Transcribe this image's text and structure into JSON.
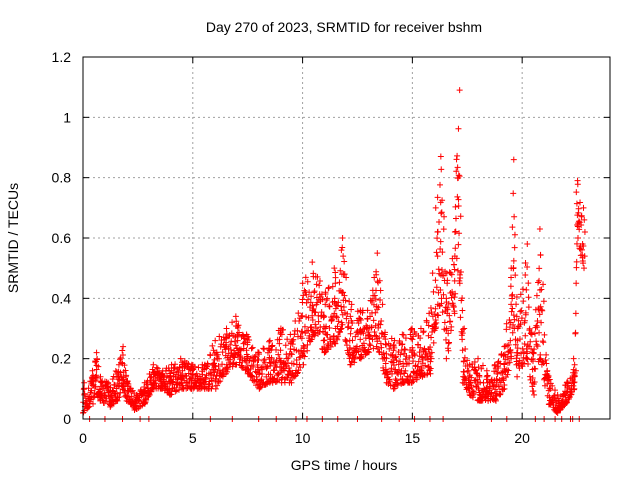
{
  "chart_data": {
    "type": "scatter",
    "title": "Day 270 of 2023, SRMTID for receiver bshm",
    "xlabel": "GPS time / hours",
    "ylabel": "SRMTID / TECUs",
    "xlim": [
      0,
      24
    ],
    "ylim": [
      0,
      1.2
    ],
    "xticks": [
      0,
      5,
      10,
      15,
      20
    ],
    "yticks": [
      0,
      0.2,
      0.4,
      0.6,
      0.8,
      1,
      1.2
    ],
    "xtick_labels": [
      "0",
      "5",
      "10",
      "15",
      "20"
    ],
    "ytick_labels": [
      "0",
      "0.2",
      "0.4",
      "0.6",
      "0.8",
      "1",
      "1.2"
    ],
    "grid": true,
    "marker": "+",
    "marker_color": "#ff0000",
    "envelope": [
      [
        0.0,
        0.02,
        0.12
      ],
      [
        0.4,
        0.05,
        0.16
      ],
      [
        0.6,
        0.08,
        0.22
      ],
      [
        0.8,
        0.06,
        0.14
      ],
      [
        1.2,
        0.04,
        0.12
      ],
      [
        1.6,
        0.06,
        0.18
      ],
      [
        1.8,
        0.1,
        0.24
      ],
      [
        2.0,
        0.06,
        0.14
      ],
      [
        2.4,
        0.03,
        0.08
      ],
      [
        2.8,
        0.05,
        0.12
      ],
      [
        3.2,
        0.1,
        0.18
      ],
      [
        3.6,
        0.1,
        0.16
      ],
      [
        4.0,
        0.08,
        0.18
      ],
      [
        4.5,
        0.1,
        0.2
      ],
      [
        5.0,
        0.1,
        0.18
      ],
      [
        5.5,
        0.1,
        0.18
      ],
      [
        6.0,
        0.1,
        0.26
      ],
      [
        6.5,
        0.15,
        0.3
      ],
      [
        7.0,
        0.18,
        0.34
      ],
      [
        7.5,
        0.15,
        0.28
      ],
      [
        8.0,
        0.1,
        0.22
      ],
      [
        8.5,
        0.12,
        0.26
      ],
      [
        9.0,
        0.12,
        0.3
      ],
      [
        9.5,
        0.12,
        0.28
      ],
      [
        10.0,
        0.18,
        0.45
      ],
      [
        10.5,
        0.28,
        0.52
      ],
      [
        11.0,
        0.22,
        0.42
      ],
      [
        11.5,
        0.25,
        0.5
      ],
      [
        11.8,
        0.3,
        0.6
      ],
      [
        12.2,
        0.18,
        0.38
      ],
      [
        12.6,
        0.2,
        0.36
      ],
      [
        13.0,
        0.22,
        0.36
      ],
      [
        13.4,
        0.24,
        0.55
      ],
      [
        13.8,
        0.12,
        0.28
      ],
      [
        14.2,
        0.1,
        0.26
      ],
      [
        14.6,
        0.12,
        0.28
      ],
      [
        15.0,
        0.12,
        0.3
      ],
      [
        15.4,
        0.14,
        0.3
      ],
      [
        15.8,
        0.15,
        0.35
      ],
      [
        16.1,
        0.3,
        0.7
      ],
      [
        16.3,
        0.4,
        0.87
      ],
      [
        16.6,
        0.2,
        0.45
      ],
      [
        16.9,
        0.35,
        0.62
      ],
      [
        17.1,
        0.45,
        1.09
      ],
      [
        17.3,
        0.12,
        0.3
      ],
      [
        17.6,
        0.08,
        0.18
      ],
      [
        18.0,
        0.06,
        0.2
      ],
      [
        18.4,
        0.06,
        0.16
      ],
      [
        18.8,
        0.06,
        0.18
      ],
      [
        19.2,
        0.1,
        0.24
      ],
      [
        19.5,
        0.2,
        0.5
      ],
      [
        19.6,
        0.3,
        0.86
      ],
      [
        19.8,
        0.14,
        0.34
      ],
      [
        20.2,
        0.2,
        0.58
      ],
      [
        20.5,
        0.08,
        0.22
      ],
      [
        20.8,
        0.2,
        0.63
      ],
      [
        21.2,
        0.05,
        0.16
      ],
      [
        21.6,
        0.02,
        0.08
      ],
      [
        22.0,
        0.05,
        0.12
      ],
      [
        22.4,
        0.1,
        0.2
      ],
      [
        22.5,
        0.6,
        0.79
      ],
      [
        22.8,
        0.5,
        0.7
      ]
    ],
    "zero_points_x": [
      0.3,
      1.0,
      1.8,
      2.6,
      3.0,
      5.8,
      6.8,
      8.0,
      8.8,
      9.7,
      10.2,
      10.9,
      11.6,
      12.5,
      13.6,
      14.4,
      15.1,
      15.8,
      16.4,
      18.6,
      19.3,
      20.6,
      21.0,
      21.5,
      21.8,
      22.2,
      22.3,
      22.6
    ]
  }
}
